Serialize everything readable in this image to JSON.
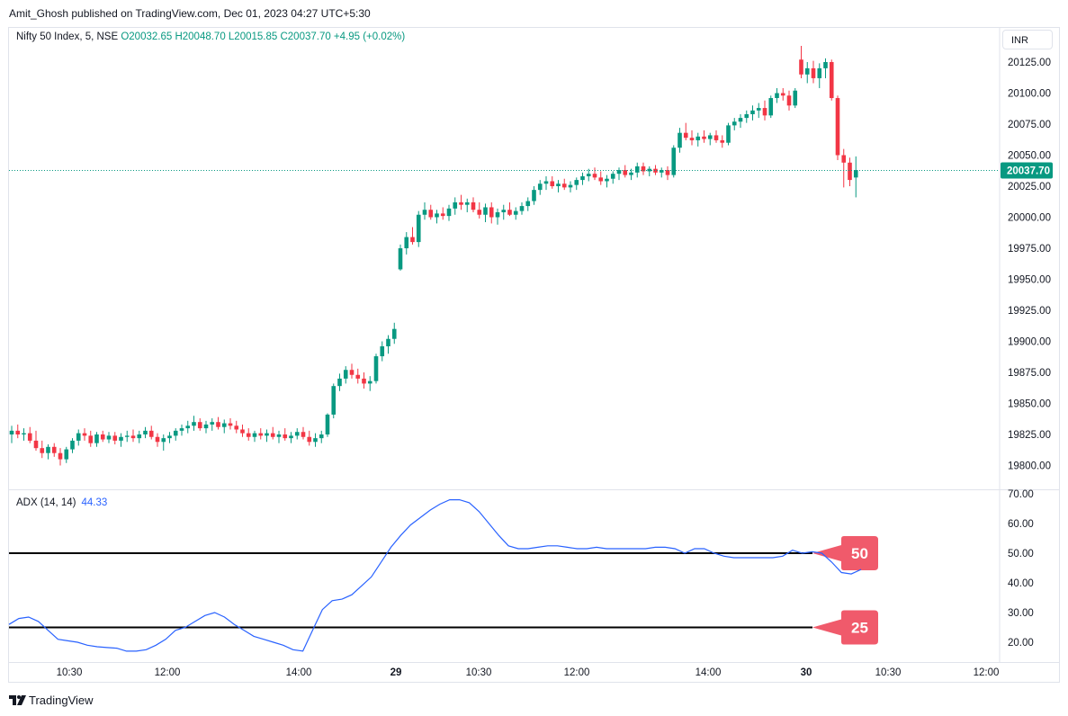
{
  "header": {
    "publisher": "Amit_Ghosh published on TradingView.com, Dec 01, 2023 04:27 UTC+5:30"
  },
  "legend": {
    "symbol": "Nifty 50 Index, 5, NSE",
    "ohlc": "O20032.65  H20048.70  L20015.85  C20037.70  +4.95 (+0.02%)"
  },
  "currency_button": "INR",
  "indicator_legend": {
    "name": "ADX (14, 14)",
    "value": "44.33"
  },
  "footer": {
    "brand": "TradingView"
  },
  "colors": {
    "up": "#089981",
    "down": "#f23645",
    "adx_line": "#2962ff",
    "level_line": "#000000",
    "badge": "#f05a6b"
  },
  "chart_data": {
    "type": "candlestick",
    "price_axis": {
      "ticks": [
        "20125.00",
        "20100.00",
        "20075.00",
        "20050.00",
        "20025.00",
        "20000.00",
        "19975.00",
        "19950.00",
        "19925.00",
        "19900.00",
        "19875.00",
        "19850.00",
        "19825.00",
        "19800.00"
      ],
      "range": [
        19788,
        20140
      ]
    },
    "last_price": "20037.70",
    "time_axis": {
      "ticks": [
        "10:30",
        "12:00",
        "14:00",
        "29",
        "10:30",
        "12:00",
        "14:00",
        "30",
        "10:30",
        "12:00"
      ]
    },
    "candles": [
      [
        19825,
        19832,
        19818,
        19828
      ],
      [
        19828,
        19833,
        19822,
        19825
      ],
      [
        19825,
        19830,
        19820,
        19826
      ],
      [
        19826,
        19831,
        19818,
        19820
      ],
      [
        19820,
        19828,
        19812,
        19814
      ],
      [
        19814,
        19820,
        19806,
        19810
      ],
      [
        19810,
        19817,
        19805,
        19815
      ],
      [
        19815,
        19818,
        19807,
        19810
      ],
      [
        19810,
        19814,
        19800,
        19805
      ],
      [
        19805,
        19815,
        19802,
        19813
      ],
      [
        19813,
        19822,
        19810,
        19820
      ],
      [
        19820,
        19829,
        19816,
        19826
      ],
      [
        19826,
        19830,
        19820,
        19824
      ],
      [
        19824,
        19828,
        19815,
        19818
      ],
      [
        19818,
        19827,
        19815,
        19825
      ],
      [
        19825,
        19828,
        19819,
        19821
      ],
      [
        19821,
        19827,
        19818,
        19824
      ],
      [
        19824,
        19827,
        19817,
        19820
      ],
      [
        19820,
        19826,
        19815,
        19823
      ],
      [
        19823,
        19828,
        19819,
        19824
      ],
      [
        19824,
        19829,
        19819,
        19822
      ],
      [
        19822,
        19828,
        19818,
        19825
      ],
      [
        19825,
        19831,
        19822,
        19828
      ],
      [
        19828,
        19832,
        19821,
        19823
      ],
      [
        19823,
        19826,
        19815,
        19819
      ],
      [
        19819,
        19825,
        19812,
        19822
      ],
      [
        19822,
        19827,
        19818,
        19824
      ],
      [
        19824,
        19830,
        19820,
        19828
      ],
      [
        19828,
        19833,
        19824,
        19830
      ],
      [
        19830,
        19836,
        19826,
        19832
      ],
      [
        19832,
        19840,
        19828,
        19835
      ],
      [
        19835,
        19838,
        19828,
        19830
      ],
      [
        19830,
        19836,
        19826,
        19833
      ],
      [
        19833,
        19838,
        19828,
        19835
      ],
      [
        19835,
        19839,
        19829,
        19831
      ],
      [
        19831,
        19837,
        19826,
        19834
      ],
      [
        19834,
        19838,
        19829,
        19832
      ],
      [
        19832,
        19836,
        19826,
        19829
      ],
      [
        19829,
        19833,
        19823,
        19826
      ],
      [
        19826,
        19830,
        19820,
        19823
      ],
      [
        19823,
        19828,
        19819,
        19826
      ],
      [
        19826,
        19830,
        19821,
        19824
      ],
      [
        19824,
        19829,
        19819,
        19826
      ],
      [
        19826,
        19831,
        19821,
        19823
      ],
      [
        19823,
        19828,
        19818,
        19825
      ],
      [
        19825,
        19830,
        19820,
        19822
      ],
      [
        19822,
        19827,
        19818,
        19824
      ],
      [
        19824,
        19830,
        19821,
        19827
      ],
      [
        19827,
        19831,
        19821,
        19823
      ],
      [
        19823,
        19828,
        19816,
        19819
      ],
      [
        19819,
        19826,
        19815,
        19822
      ],
      [
        19822,
        19828,
        19818,
        19825
      ],
      [
        19825,
        19842,
        19823,
        19841
      ],
      [
        19841,
        19866,
        19838,
        19864
      ],
      [
        19864,
        19874,
        19860,
        19870
      ],
      [
        19870,
        19880,
        19866,
        19877
      ],
      [
        19877,
        19882,
        19870,
        19873
      ],
      [
        19873,
        19878,
        19866,
        19870
      ],
      [
        19870,
        19875,
        19862,
        19866
      ],
      [
        19866,
        19872,
        19860,
        19868
      ],
      [
        19868,
        19890,
        19866,
        19888
      ],
      [
        19888,
        19900,
        19884,
        19896
      ],
      [
        19896,
        19905,
        19890,
        19902
      ],
      [
        19902,
        19915,
        19898,
        19910
      ],
      [
        19958,
        19978,
        19957,
        19975
      ],
      [
        19975,
        19988,
        19970,
        19984
      ],
      [
        19984,
        19992,
        19978,
        19980
      ],
      [
        19980,
        20005,
        19976,
        20002
      ],
      [
        20002,
        20012,
        19998,
        20006
      ],
      [
        20006,
        20010,
        19998,
        20000
      ],
      [
        20000,
        20006,
        19995,
        20003
      ],
      [
        20003,
        20008,
        19998,
        20001
      ],
      [
        20001,
        20010,
        19997,
        20007
      ],
      [
        20007,
        20016,
        20002,
        20012
      ],
      [
        20012,
        20018,
        20006,
        20010
      ],
      [
        20010,
        20015,
        20004,
        20012
      ],
      [
        20012,
        20016,
        20004,
        20006
      ],
      [
        20006,
        20012,
        19999,
        20002
      ],
      [
        20002,
        20011,
        19996,
        20008
      ],
      [
        20008,
        20012,
        19995,
        20000
      ],
      [
        20000,
        20007,
        19994,
        20004
      ],
      [
        20004,
        20010,
        19998,
        20006
      ],
      [
        20006,
        20012,
        20001,
        20002
      ],
      [
        20002,
        20008,
        19998,
        20005
      ],
      [
        20005,
        20012,
        20002,
        20009
      ],
      [
        20009,
        20016,
        20005,
        20013
      ],
      [
        20013,
        20025,
        20010,
        20022
      ],
      [
        20022,
        20030,
        20018,
        20027
      ],
      [
        20027,
        20033,
        20022,
        20029
      ],
      [
        20029,
        20033,
        20023,
        20025
      ],
      [
        20025,
        20030,
        20020,
        20027
      ],
      [
        20027,
        20031,
        20022,
        20024
      ],
      [
        20024,
        20029,
        20020,
        20026
      ],
      [
        20026,
        20032,
        20022,
        20030
      ],
      [
        20030,
        20036,
        20026,
        20033
      ],
      [
        20033,
        20039,
        20029,
        20035
      ],
      [
        20035,
        20040,
        20030,
        20032
      ],
      [
        20032,
        20037,
        20026,
        20029
      ],
      [
        20029,
        20034,
        20024,
        20031
      ],
      [
        20031,
        20037,
        20027,
        20035
      ],
      [
        20035,
        20040,
        20030,
        20038
      ],
      [
        20038,
        20042,
        20032,
        20034
      ],
      [
        20034,
        20039,
        20030,
        20036
      ],
      [
        20036,
        20044,
        20032,
        20041
      ],
      [
        20041,
        20044,
        20034,
        20037
      ],
      [
        20037,
        20041,
        20033,
        20039
      ],
      [
        20039,
        20042,
        20034,
        20036
      ],
      [
        20036,
        20040,
        20032,
        20038
      ],
      [
        20038,
        20041,
        20030,
        20034
      ],
      [
        20034,
        20058,
        20032,
        20056
      ],
      [
        20056,
        20072,
        20052,
        20068
      ],
      [
        20068,
        20076,
        20062,
        20064
      ],
      [
        20064,
        20070,
        20058,
        20062
      ],
      [
        20062,
        20068,
        20057,
        20065
      ],
      [
        20065,
        20070,
        20060,
        20063
      ],
      [
        20063,
        20068,
        20058,
        20066
      ],
      [
        20066,
        20070,
        20060,
        20062
      ],
      [
        20062,
        20066,
        20056,
        20060
      ],
      [
        20060,
        20076,
        20058,
        20074
      ],
      [
        20074,
        20080,
        20070,
        20077
      ],
      [
        20077,
        20083,
        20072,
        20080
      ],
      [
        20080,
        20086,
        20076,
        20083
      ],
      [
        20083,
        20090,
        20078,
        20086
      ],
      [
        20086,
        20092,
        20080,
        20088
      ],
      [
        20088,
        20094,
        20078,
        20082
      ],
      [
        20082,
        20098,
        20080,
        20096
      ],
      [
        20096,
        20104,
        20092,
        20100
      ],
      [
        20100,
        20104,
        20094,
        20098
      ],
      [
        20098,
        20102,
        20086,
        20090
      ],
      [
        20090,
        20104,
        20088,
        20102
      ],
      [
        20127,
        20138,
        20112,
        20115
      ],
      [
        20115,
        20125,
        20108,
        20120
      ],
      [
        20120,
        20126,
        20108,
        20112
      ],
      [
        20112,
        20124,
        20104,
        20120
      ],
      [
        20120,
        20128,
        20112,
        20125
      ],
      [
        20125,
        20127,
        20094,
        20096
      ],
      [
        20096,
        20098,
        20046,
        20050
      ],
      [
        20050,
        20055,
        20024,
        20044
      ],
      [
        20044,
        20048,
        20025,
        20030
      ],
      [
        20032,
        20049,
        20016,
        20038
      ]
    ],
    "indicator": {
      "name": "ADX (14, 14)",
      "value": "44.33",
      "axis_ticks": [
        "70.00",
        "60.00",
        "50.00",
        "40.00",
        "30.00",
        "20.00"
      ],
      "range": [
        14,
        70
      ],
      "values": [
        26,
        28,
        28.5,
        27,
        24,
        21,
        20.5,
        20,
        19,
        18.5,
        18.2,
        18,
        17,
        17,
        17.5,
        19,
        21,
        24,
        25,
        27,
        29,
        30,
        28.5,
        26,
        24,
        22,
        21,
        20,
        19,
        17.5,
        17,
        24,
        31,
        34,
        34.5,
        36,
        39,
        42,
        47,
        52,
        56,
        59.5,
        62,
        64.5,
        66.5,
        68,
        68,
        67,
        64,
        60,
        56,
        52.5,
        51.5,
        51.5,
        52,
        52.5,
        52.5,
        52,
        51.5,
        51.5,
        52,
        51.5,
        51.5,
        51.5,
        51.5,
        51.5,
        52,
        52,
        51.5,
        50,
        51.5,
        51.5,
        50,
        49,
        48.5,
        48.5,
        48.5,
        48.5,
        48.5,
        49,
        51,
        50,
        50.5,
        50,
        47,
        43.5,
        43,
        44.5
      ],
      "levels": [
        50,
        25
      ]
    }
  }
}
